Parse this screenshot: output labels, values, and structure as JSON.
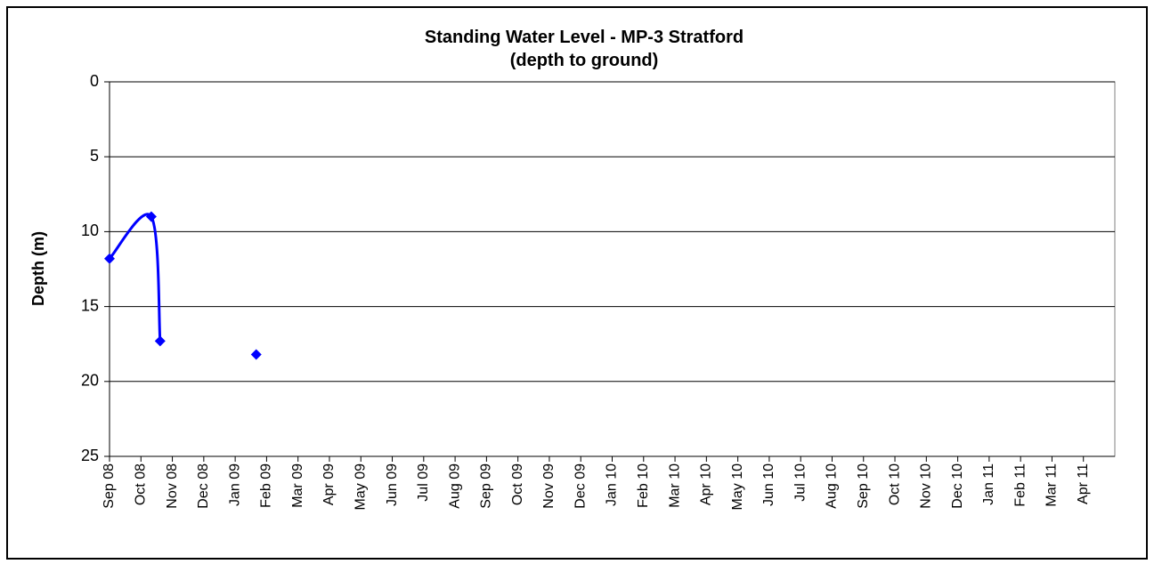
{
  "chart_data": {
    "type": "line",
    "title": [
      "Standing Water Level - MP-3 Stratford",
      "(depth to ground)"
    ],
    "y_label": "Depth (m)",
    "x": [
      0,
      1.33,
      1.61,
      3,
      4.67
    ],
    "series": [
      {
        "name": "MP-3 Stratford",
        "color": "#0000ff",
        "values": [
          11.8,
          9.0,
          17.3,
          null,
          18.2
        ]
      }
    ],
    "xlim": [
      0,
      32
    ],
    "xticks": [
      {
        "value": 0,
        "label": "Sep 08"
      },
      {
        "value": 1,
        "label": "Oct 08"
      },
      {
        "value": 2,
        "label": "Nov 08"
      },
      {
        "value": 3,
        "label": "Dec 08"
      },
      {
        "value": 4,
        "label": "Jan 09"
      },
      {
        "value": 5,
        "label": "Feb 09"
      },
      {
        "value": 6,
        "label": "Mar 09"
      },
      {
        "value": 7,
        "label": "Apr 09"
      },
      {
        "value": 8,
        "label": "May 09"
      },
      {
        "value": 9,
        "label": "Jun 09"
      },
      {
        "value": 10,
        "label": "Jul 09"
      },
      {
        "value": 11,
        "label": "Aug 09"
      },
      {
        "value": 12,
        "label": "Sep 09"
      },
      {
        "value": 13,
        "label": "Oct 09"
      },
      {
        "value": 14,
        "label": "Nov 09"
      },
      {
        "value": 15,
        "label": "Dec 09"
      },
      {
        "value": 16,
        "label": "Jan 10"
      },
      {
        "value": 17,
        "label": "Feb 10"
      },
      {
        "value": 18,
        "label": "Mar 10"
      },
      {
        "value": 19,
        "label": "Apr 10"
      },
      {
        "value": 20,
        "label": "May 10"
      },
      {
        "value": 21,
        "label": "Jun 10"
      },
      {
        "value": 22,
        "label": "Jul 10"
      },
      {
        "value": 23,
        "label": "Aug 10"
      },
      {
        "value": 24,
        "label": "Sep 10"
      },
      {
        "value": 25,
        "label": "Oct 10"
      },
      {
        "value": 26,
        "label": "Nov 10"
      },
      {
        "value": 27,
        "label": "Dec 10"
      },
      {
        "value": 28,
        "label": "Jan 11"
      },
      {
        "value": 29,
        "label": "Feb 11"
      },
      {
        "value": 30,
        "label": "Mar 11"
      },
      {
        "value": 31,
        "label": "Apr 11"
      }
    ],
    "ylim": [
      0,
      25
    ],
    "yticks": [
      0,
      5,
      10,
      15,
      20,
      25
    ],
    "y_inverted": true,
    "grid": true
  }
}
